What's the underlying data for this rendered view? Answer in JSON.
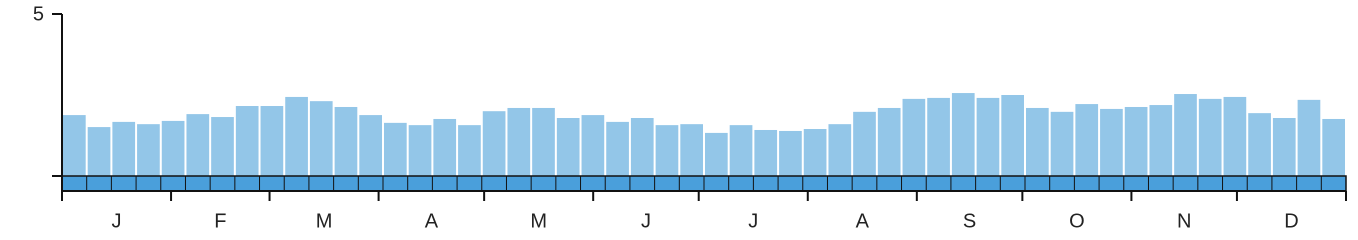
{
  "chart_data": {
    "type": "bar",
    "values": [
      1.88,
      1.51,
      1.67,
      1.6,
      1.7,
      1.91,
      1.82,
      2.16,
      2.16,
      2.44,
      2.31,
      2.13,
      1.88,
      1.64,
      1.57,
      1.76,
      1.57,
      2.0,
      2.1,
      2.1,
      1.79,
      1.88,
      1.67,
      1.79,
      1.57,
      1.6,
      1.33,
      1.57,
      1.42,
      1.39,
      1.45,
      1.6,
      1.98,
      2.1,
      2.38,
      2.41,
      2.56,
      2.41,
      2.5,
      2.1,
      1.98,
      2.22,
      2.07,
      2.13,
      2.19,
      2.53,
      2.38,
      2.44,
      1.94,
      1.79,
      2.35,
      1.76
    ],
    "color": "#93c6e8",
    "x_labels": [
      "J",
      "F",
      "M",
      "A",
      "M",
      "J",
      "J",
      "A",
      "S",
      "O",
      "N",
      "D"
    ],
    "ylim": [
      0,
      5
    ],
    "yticks": [
      5
    ]
  }
}
